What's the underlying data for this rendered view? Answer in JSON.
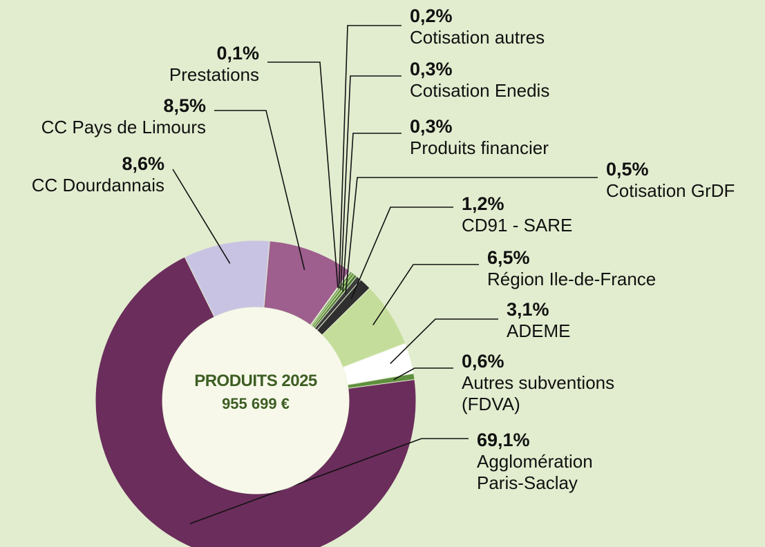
{
  "chart_data": {
    "type": "pie",
    "title": "PRODUITS 2025",
    "subtitle": "955 699 €",
    "categories": [
      "CC Pays de Limours",
      "Prestations",
      "Cotisation autres",
      "Cotisation Enedis",
      "Produits financier",
      "Cotisation GrDF",
      "CD91 - SARE",
      "Région Ile-de-France",
      "ADEME",
      "Autres subventions (FDVA)",
      "Agglomération Paris-Saclay",
      "CC Dourdannais"
    ],
    "values": [
      8.5,
      0.1,
      0.2,
      0.3,
      0.3,
      0.5,
      1.2,
      6.5,
      3.1,
      0.6,
      69.1,
      8.6
    ],
    "value_labels": [
      "8,5%",
      "0,1%",
      "0,2%",
      "0,3%",
      "0,3%",
      "0,5%",
      "1,2%",
      "6,5%",
      "3,1%",
      "0,6%",
      "69,1%",
      "8,6%"
    ],
    "colors": [
      "#9e5f8e",
      "#b9a9d8",
      "#5a8a3a",
      "#6a9a40",
      "#4e7a32",
      "#3c3c3c",
      "#2f2f2f",
      "#c5dd9a",
      "#ffffff",
      "#5f8f3f",
      "#6b2d5c",
      "#c9c3e3"
    ]
  }
}
